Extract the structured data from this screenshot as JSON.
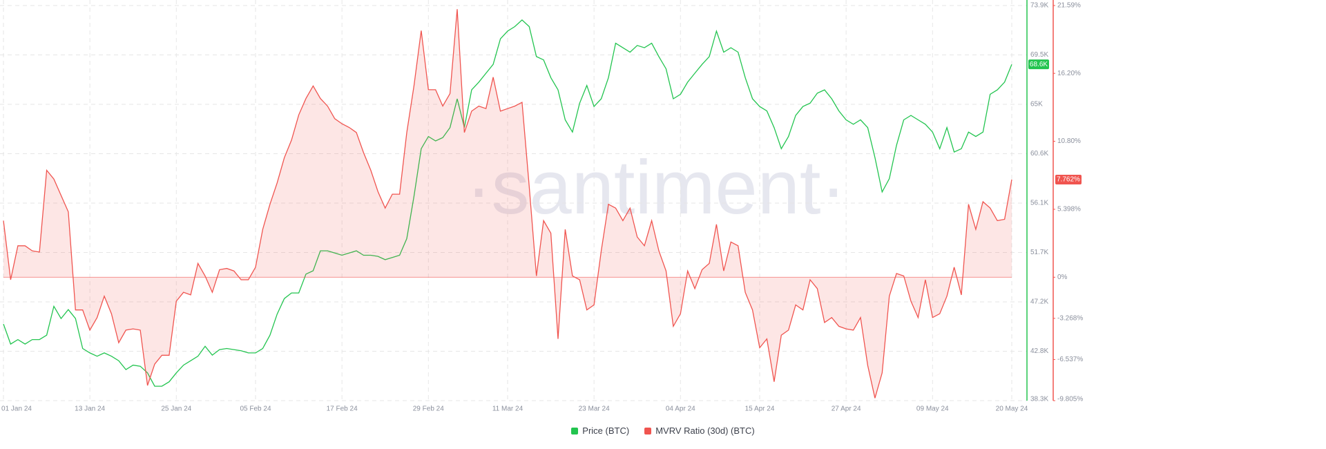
{
  "chart_data": {
    "type": "line",
    "watermark": "·santiment·",
    "categories": [
      "01 Jan 24",
      null,
      null,
      null,
      null,
      null,
      null,
      null,
      null,
      null,
      null,
      null,
      "13 Jan 24",
      null,
      null,
      null,
      null,
      null,
      null,
      null,
      null,
      null,
      null,
      null,
      "25 Jan 24",
      null,
      null,
      null,
      null,
      null,
      null,
      null,
      null,
      null,
      null,
      "05 Feb 24",
      null,
      null,
      null,
      null,
      null,
      null,
      null,
      null,
      null,
      null,
      null,
      "17 Feb 24",
      null,
      null,
      null,
      null,
      null,
      null,
      null,
      null,
      null,
      null,
      null,
      "29 Feb 24",
      null,
      null,
      null,
      null,
      null,
      null,
      null,
      null,
      null,
      null,
      "11 Mar 24",
      null,
      null,
      null,
      null,
      null,
      null,
      null,
      null,
      null,
      null,
      null,
      "23 Mar 24",
      null,
      null,
      null,
      null,
      null,
      null,
      null,
      null,
      null,
      null,
      null,
      "04 Apr 24",
      null,
      null,
      null,
      null,
      null,
      null,
      null,
      null,
      null,
      null,
      "15 Apr 24",
      null,
      null,
      null,
      null,
      null,
      null,
      null,
      null,
      null,
      null,
      null,
      "27 Apr 24",
      null,
      null,
      null,
      null,
      null,
      null,
      null,
      null,
      null,
      null,
      null,
      "09 May 24",
      null,
      null,
      null,
      null,
      null,
      null,
      null,
      null,
      null,
      null,
      "20 May 24"
    ],
    "series": [
      {
        "name": "Price (BTC)",
        "color": "#22c44f",
        "axis": "y",
        "current_label": "68.6K",
        "values": [
          45200,
          43400,
          43800,
          43400,
          43800,
          43800,
          44200,
          46800,
          45700,
          46500,
          45700,
          43000,
          42600,
          42300,
          42600,
          42300,
          41900,
          41100,
          41500,
          41400,
          40800,
          39600,
          39600,
          40000,
          40800,
          41500,
          41900,
          42300,
          43200,
          42400,
          42900,
          43000,
          42900,
          42800,
          42600,
          42600,
          43000,
          44200,
          46100,
          47500,
          48000,
          48000,
          49700,
          50000,
          51800,
          51800,
          51600,
          51400,
          51600,
          51800,
          51400,
          51400,
          51300,
          51000,
          51200,
          51400,
          52900,
          56700,
          61000,
          62100,
          61700,
          62000,
          62900,
          65500,
          62900,
          66300,
          67000,
          67800,
          68600,
          70900,
          71600,
          72000,
          72600,
          72000,
          69300,
          69000,
          67400,
          66300,
          63600,
          62500,
          65100,
          66700,
          64800,
          65500,
          67400,
          70500,
          70100,
          69700,
          70300,
          70100,
          70500,
          69300,
          68200,
          65500,
          65900,
          67000,
          67800,
          68600,
          69300,
          71600,
          69700,
          70100,
          69700,
          67400,
          65500,
          64800,
          64400,
          62900,
          61000,
          62100,
          64000,
          64800,
          65100,
          66000,
          66300,
          65500,
          64400,
          63600,
          63200,
          63600,
          62900,
          60200,
          57100,
          58300,
          61300,
          63600,
          64000,
          63600,
          63200,
          62500,
          61000,
          62900,
          60700,
          61000,
          62500,
          62100,
          62500,
          65900,
          66300,
          67000,
          68600
        ]
      },
      {
        "name": "MVRV Ratio (30d) (BTC)",
        "color": "#f0544f",
        "axis": "y2",
        "current_label": "7.762%",
        "values": [
          4.5,
          -0.2,
          2.5,
          2.5,
          2.1,
          2.0,
          8.5,
          7.8,
          6.5,
          5.2,
          -2.6,
          -2.6,
          -4.2,
          -3.2,
          -1.5,
          -2.9,
          -5.2,
          -4.2,
          -4.1,
          -4.2,
          -8.6,
          -6.9,
          -6.2,
          -6.2,
          -1.9,
          -1.2,
          -1.4,
          1.1,
          0.1,
          -1.2,
          0.6,
          0.7,
          0.5,
          -0.2,
          -0.2,
          0.8,
          3.8,
          5.8,
          7.5,
          9.5,
          10.9,
          12.9,
          14.2,
          15.2,
          14.2,
          13.6,
          12.6,
          12.2,
          11.9,
          11.5,
          9.9,
          8.5,
          6.8,
          5.5,
          6.6,
          6.6,
          11.5,
          15.2,
          19.6,
          14.9,
          14.9,
          13.6,
          14.6,
          21.3,
          11.5,
          13.2,
          13.6,
          13.4,
          15.9,
          13.2,
          13.4,
          13.6,
          13.9,
          7.2,
          0.1,
          4.5,
          3.5,
          -4.9,
          3.8,
          0.1,
          -0.2,
          -2.6,
          -2.2,
          2.1,
          5.8,
          5.5,
          4.5,
          5.5,
          3.2,
          2.5,
          4.5,
          2.1,
          0.5,
          -3.9,
          -2.9,
          0.5,
          -0.9,
          0.6,
          1.1,
          4.2,
          0.5,
          2.8,
          2.5,
          -1.2,
          -2.6,
          -5.6,
          -4.9,
          -8.3,
          -4.6,
          -4.2,
          -2.2,
          -2.6,
          -0.2,
          -0.9,
          -3.6,
          -3.2,
          -3.9,
          -4.1,
          -4.2,
          -3.2,
          -7.0,
          -9.6,
          -7.6,
          -1.5,
          0.3,
          0.1,
          -1.9,
          -3.2,
          -0.2,
          -3.2,
          -2.9,
          -1.5,
          0.8,
          -1.4,
          5.8,
          3.8,
          6.0,
          5.5,
          4.5,
          4.6,
          7.762
        ]
      }
    ],
    "ylim": [
      38300,
      73900
    ],
    "yticks": [
      {
        "value": 38300,
        "label": "38.3K"
      },
      {
        "value": 42750,
        "label": "42.8K"
      },
      {
        "value": 47200,
        "label": "47.2K"
      },
      {
        "value": 51650,
        "label": "51.7K"
      },
      {
        "value": 56100,
        "label": "56.1K"
      },
      {
        "value": 60550,
        "label": "60.6K"
      },
      {
        "value": 65000,
        "label": "65K"
      },
      {
        "value": 69450,
        "label": "69.5K"
      },
      {
        "value": 73900,
        "label": "73.9K"
      }
    ],
    "y2lim": [
      -9.805,
      21.59
    ],
    "y2ticks": [
      {
        "value": -9.805,
        "label": "-9.805%"
      },
      {
        "value": -6.537,
        "label": "-6.537%"
      },
      {
        "value": -3.268,
        "label": "-3.268%"
      },
      {
        "value": 0,
        "label": "0%"
      },
      {
        "value": 5.398,
        "label": "5.398%"
      },
      {
        "value": 10.8,
        "label": "10.80%"
      },
      {
        "value": 16.2,
        "label": "16.20%"
      },
      {
        "value": 21.59,
        "label": "21.59%"
      }
    ],
    "grid": true
  }
}
